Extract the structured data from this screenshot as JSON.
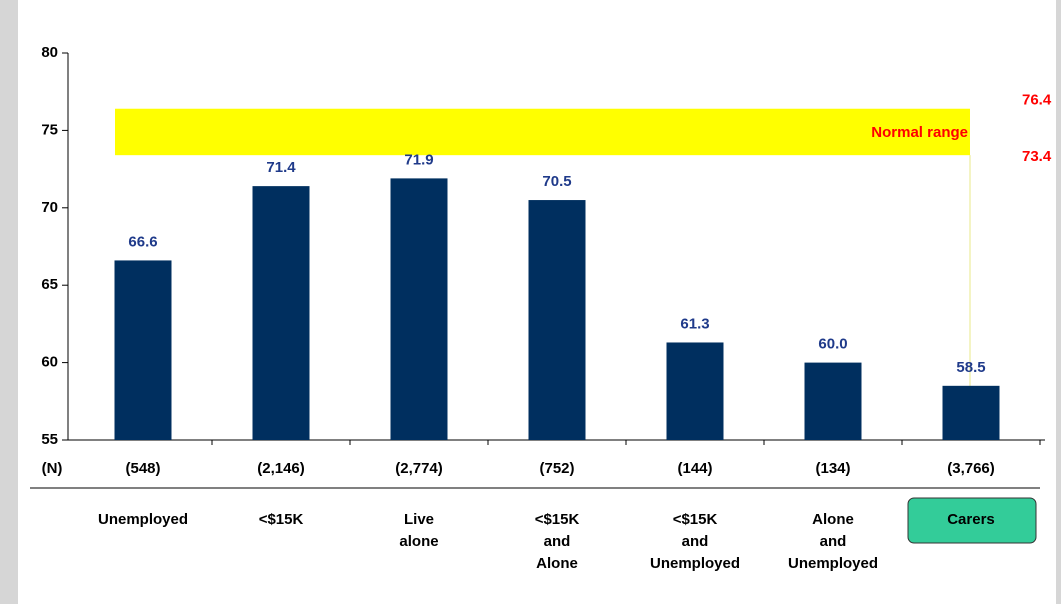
{
  "chart_data": {
    "type": "bar",
    "categories": [
      "Unemployed",
      "<$15K",
      "Live alone",
      "<$15K and Alone",
      "<$15K and Unemployed",
      "Alone and Unemployed",
      "Carers"
    ],
    "values": [
      66.6,
      71.4,
      71.9,
      70.5,
      61.3,
      60,
      58.5
    ],
    "value_labels": [
      "66.6",
      "71.4",
      "71.9",
      "70.5",
      "61.3",
      "60.0",
      "58.5"
    ],
    "color": "#002f5f",
    "value_label_color": "#1f3a8a",
    "n_label": "(N)",
    "n": [
      "(548)",
      "(2,146)",
      "(2,774)",
      "(752)",
      "(144)",
      "(134)",
      "(3,766)"
    ],
    "ylim": [
      55,
      80
    ],
    "yticks": [
      55,
      60,
      65,
      70,
      75,
      80
    ],
    "reference_band": {
      "label": "Normal range",
      "low": 73.4,
      "high": 76.4,
      "color": "#ffff00",
      "label_color": "#ff0000"
    },
    "highlight": 6,
    "highlight_color": "#33cc99"
  }
}
